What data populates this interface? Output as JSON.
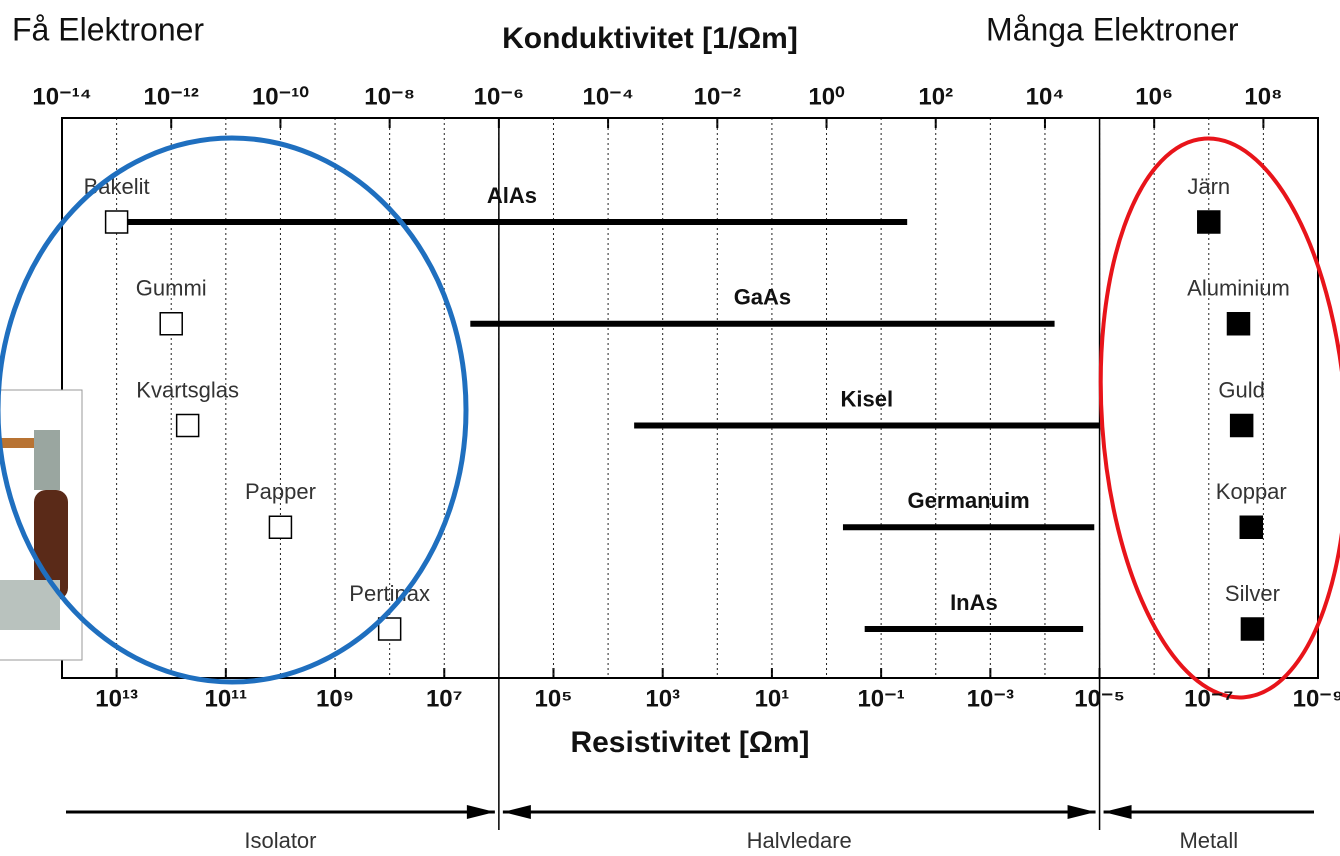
{
  "chart_data": {
    "type": "range",
    "title": "Konduktivitet [1/Ωm]",
    "x2label": "Resistivitet [Ωm]",
    "annotations": [
      "Få Elektroner",
      "Många Elektroner"
    ],
    "log_x": true,
    "grid": true,
    "xlim": [
      1e-14,
      1000000000.0
    ],
    "xticks": [
      {
        "value": 1e-14,
        "label": "10⁻¹⁴"
      },
      {
        "value": 1e-12,
        "label": "10⁻¹²"
      },
      {
        "value": 1e-10,
        "label": "10⁻¹⁰"
      },
      {
        "value": 1e-08,
        "label": "10⁻⁸"
      },
      {
        "value": 1e-06,
        "label": "10⁻⁶"
      },
      {
        "value": 0.0001,
        "label": "10⁻⁴"
      },
      {
        "value": 0.01,
        "label": "10⁻²"
      },
      {
        "value": 1,
        "label": "10⁰"
      },
      {
        "value": 100,
        "label": "10²"
      },
      {
        "value": 10000.0,
        "label": "10⁴"
      },
      {
        "value": 1000000.0,
        "label": "10⁶"
      },
      {
        "value": 100000000.0,
        "label": "10⁸"
      }
    ],
    "x2lim": [
      100000000000000.0,
      1e-09
    ],
    "x2ticks": [
      {
        "value": 10000000000000.0,
        "label": "10¹³"
      },
      {
        "value": 100000000000.0,
        "label": "10¹¹"
      },
      {
        "value": 1000000000.0,
        "label": "10⁹"
      },
      {
        "value": 10000000.0,
        "label": "10⁷"
      },
      {
        "value": 100000.0,
        "label": "10⁵"
      },
      {
        "value": 1000.0,
        "label": "10³"
      },
      {
        "value": 10,
        "label": "10¹"
      },
      {
        "value": 0.1,
        "label": "10⁻¹"
      },
      {
        "value": 0.001,
        "label": "10⁻³"
      },
      {
        "value": 1e-05,
        "label": "10⁻⁵"
      },
      {
        "value": 1e-07,
        "label": "10⁻⁷"
      },
      {
        "value": 1e-09,
        "label": "10⁻⁹"
      }
    ],
    "insulators": {
      "color": "#ffffff",
      "items": [
        {
          "label": "Bakelit",
          "value": 1e-13
        },
        {
          "label": "Gummi",
          "value": 1e-12
        },
        {
          "label": "Kvartsglas",
          "value": 2e-12
        },
        {
          "label": "Papper",
          "value": 1e-10
        },
        {
          "label": "Pertinax",
          "value": 1e-08
        }
      ]
    },
    "semiconductors": {
      "color": "#000000",
      "items": [
        {
          "label": "AlAs",
          "low": 1e-13,
          "high": 30
        },
        {
          "label": "GaAs",
          "low": 3e-07,
          "high": 15000
        },
        {
          "label": "Kisel",
          "low": 0.0003,
          "high": 100000
        },
        {
          "label": "Germanuim",
          "low": 2,
          "high": 80000
        },
        {
          "label": "InAs",
          "low": 5,
          "high": 50000
        }
      ]
    },
    "metals": {
      "color": "#000000",
      "items": [
        {
          "label": "Järn",
          "value": 10000000.0
        },
        {
          "label": "Aluminium",
          "value": 35000000.0
        },
        {
          "label": "Guld",
          "value": 40000000.0
        },
        {
          "label": "Koppar",
          "value": 60000000.0
        },
        {
          "label": "Silver",
          "value": 63000000.0
        }
      ]
    },
    "regions": [
      {
        "label": "Isolator",
        "bounds": [
          1e-14,
          1e-06
        ]
      },
      {
        "label": "Halvledare",
        "bounds": [
          1e-06,
          100000.0
        ]
      },
      {
        "label": "Metall",
        "bounds": [
          100000.0,
          1000000000.0
        ]
      }
    ]
  }
}
